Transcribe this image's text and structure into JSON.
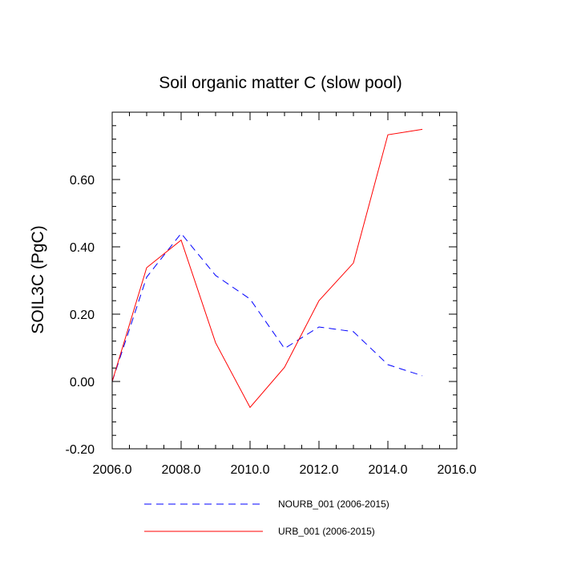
{
  "chart_data": {
    "type": "line",
    "title": "Soil organic matter C (slow pool)",
    "xlabel": "",
    "ylabel": "SOIL3C  (PgC)",
    "xlim": [
      2006,
      2016
    ],
    "ylim": [
      -0.2,
      0.8
    ],
    "xticks": [
      2006,
      2008,
      2010,
      2012,
      2014,
      2016
    ],
    "xtick_labels": [
      "2006.0",
      "2008.0",
      "2010.0",
      "2012.0",
      "2014.0",
      "2016.0"
    ],
    "yticks": [
      -0.2,
      0.0,
      0.2,
      0.4,
      0.6
    ],
    "ytick_labels": [
      "-0.20",
      "0.00",
      "0.20",
      "0.40",
      "0.60"
    ],
    "grid": false,
    "legend_position": "bottom",
    "x": [
      2006,
      2007,
      2008,
      2009,
      2010,
      2011,
      2012,
      2013,
      2014,
      2015
    ],
    "series": [
      {
        "name": "NOURB_001 (2006-2015)",
        "color": "#0000ff",
        "style": "dashed",
        "values": [
          0.0,
          0.31,
          0.44,
          0.315,
          0.245,
          0.098,
          0.162,
          0.148,
          0.05,
          0.017
        ]
      },
      {
        "name": "URB_001 (2006-2015)",
        "color": "#ff0000",
        "style": "solid",
        "values": [
          0.0,
          0.338,
          0.42,
          0.115,
          -0.077,
          0.042,
          0.24,
          0.352,
          0.733,
          0.749
        ]
      }
    ]
  }
}
